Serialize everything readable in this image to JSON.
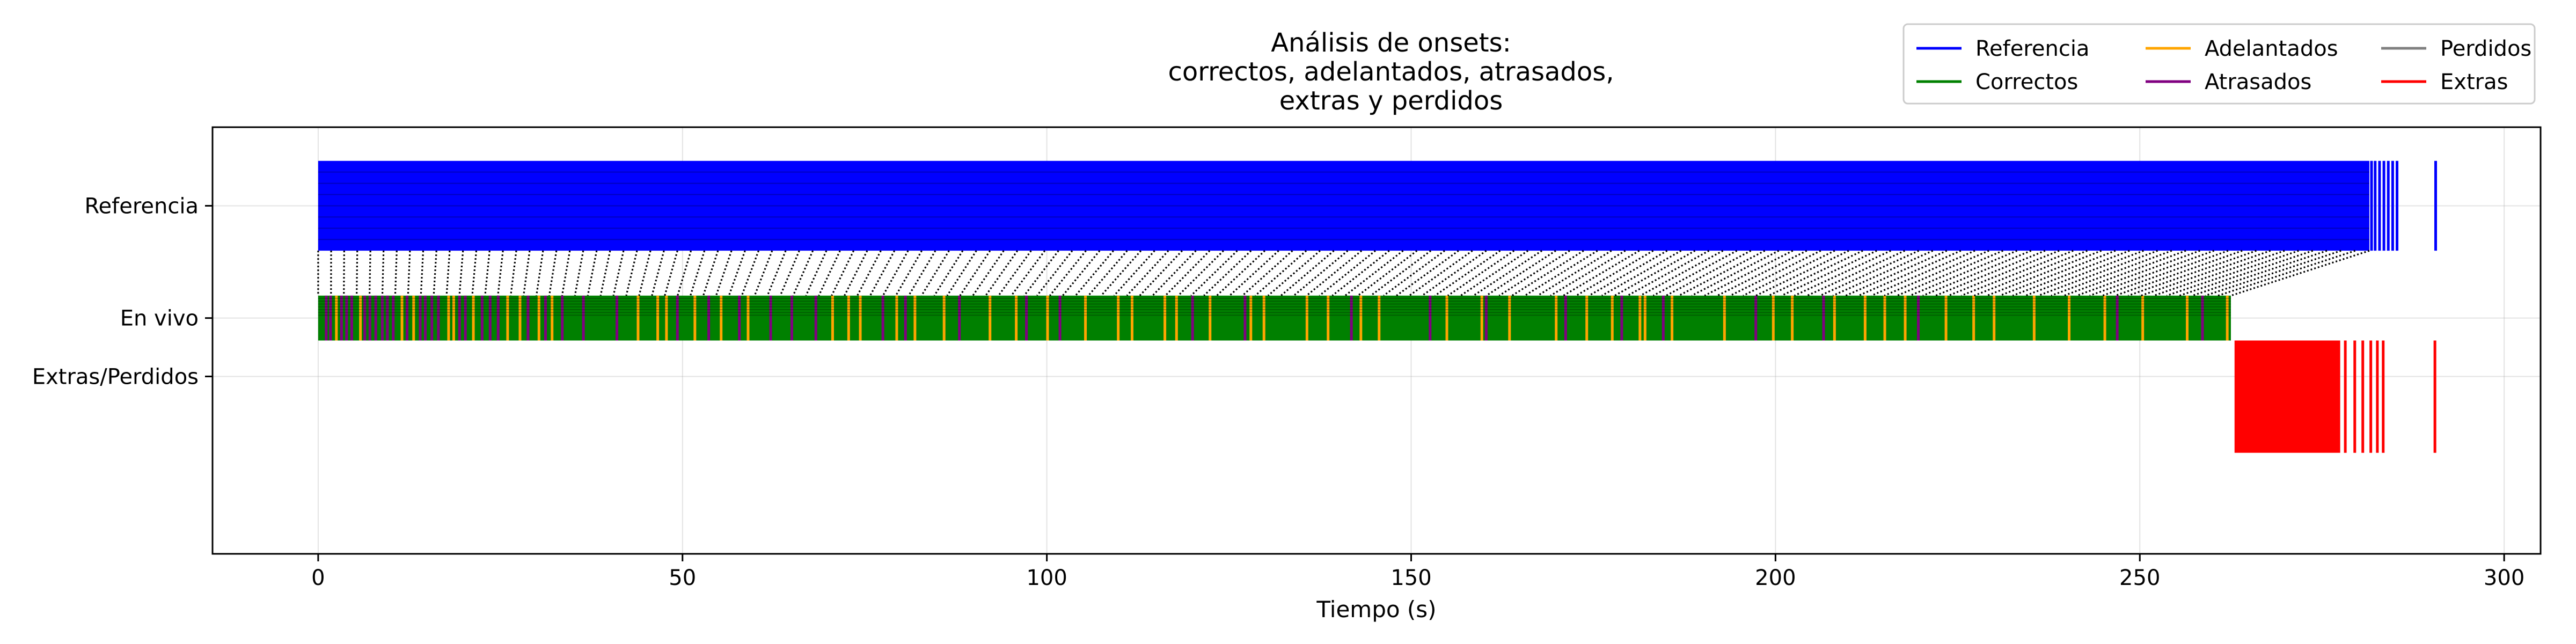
{
  "chart_data": {
    "type": "eventplot",
    "title_lines": [
      "Análisis de onsets:",
      "correctos, adelantados, atrasados,",
      "extras y perdidos"
    ],
    "xlabel": "Tiempo (s)",
    "xlim": [
      -14.5,
      305
    ],
    "ylim": [
      -0.55,
      1.35
    ],
    "xticks": [
      0,
      50,
      100,
      150,
      200,
      250,
      300
    ],
    "grid": true,
    "legend_position": "top-right",
    "rows": [
      {
        "label": "Referencia",
        "y": 1.0
      },
      {
        "label": "En vivo",
        "y": 0.5
      },
      {
        "label": "Extras/Perdidos",
        "y": 0.24
      }
    ],
    "legend": [
      {
        "label": "Referencia",
        "color": "#0000ff"
      },
      {
        "label": "Correctos",
        "color": "#008000"
      },
      {
        "label": "Adelantados",
        "color": "#ffa500"
      },
      {
        "label": "Atrasados",
        "color": "#800080"
      },
      {
        "label": "Perdidos",
        "color": "#808080"
      },
      {
        "label": "Extras",
        "color": "#ff0000"
      }
    ],
    "series": {
      "referencia": {
        "color": "#0000ff",
        "range": [
          0,
          281.5
        ],
        "y_band": [
          0.8,
          1.2
        ],
        "tail_events": [
          281.8,
          282.3,
          282.9,
          283.5,
          284.1,
          284.7,
          285.3,
          290.6
        ]
      },
      "correctos": {
        "color": "#008000",
        "range": [
          0,
          262.5
        ],
        "y_band": [
          0.4,
          0.6
        ]
      },
      "adelantados": {
        "color": "#ffa500",
        "y_band": [
          0.4,
          0.6
        ],
        "events": [
          2.5,
          5.8,
          11.5,
          13.1,
          17.9,
          18.6,
          21.3,
          26.0,
          27.7,
          30.3,
          32.1,
          43.9,
          46.6,
          47.8,
          51.7,
          55.3,
          59.0,
          70.6,
          72.8,
          74.4,
          79.4,
          81.9,
          85.9,
          92.2,
          95.8,
          100.1,
          105.3,
          109.8,
          111.7,
          116.2,
          117.8,
          122.4,
          128.0,
          129.8,
          135.7,
          138.6,
          143.1,
          145.6,
          154.9,
          159.7,
          163.5,
          169.9,
          174.1,
          177.6,
          181.4,
          182.1,
          185.8,
          193.0,
          199.7,
          202.3,
          208.1,
          212.3,
          215.0,
          217.8,
          223.4,
          227.2,
          230.0,
          235.5,
          240.3,
          245.2,
          250.4,
          256.5,
          262.0
        ]
      },
      "atrasados": {
        "color": "#800080",
        "y_band": [
          0.4,
          0.6
        ],
        "events": [
          1.1,
          1.7,
          3.2,
          3.9,
          4.6,
          6.4,
          7.1,
          7.9,
          8.8,
          9.5,
          10.3,
          12.2,
          14.0,
          14.7,
          15.6,
          16.5,
          19.4,
          20.2,
          22.5,
          23.6,
          24.7,
          28.8,
          31.2,
          33.5,
          36.4,
          41.0,
          49.3,
          53.6,
          57.8,
          62.1,
          65.0,
          68.3,
          77.5,
          80.6,
          88.0,
          97.2,
          101.8,
          120.0,
          127.2,
          141.8,
          152.6,
          160.3,
          171.2,
          178.9,
          184.6,
          197.3,
          206.6,
          219.6,
          246.9,
          258.6
        ]
      },
      "extras": {
        "color": "#ff0000",
        "range": [
          263.0,
          277.5
        ],
        "y_band": [
          -0.1,
          0.4
        ],
        "tail_events": [
          278.2,
          279.5,
          280.6,
          281.7,
          282.6,
          283.4,
          290.5
        ]
      },
      "links": {
        "color": "#000000",
        "style": "dotted",
        "from_y": 0.8,
        "to_y": 0.6,
        "shift_max": 19
      }
    }
  }
}
